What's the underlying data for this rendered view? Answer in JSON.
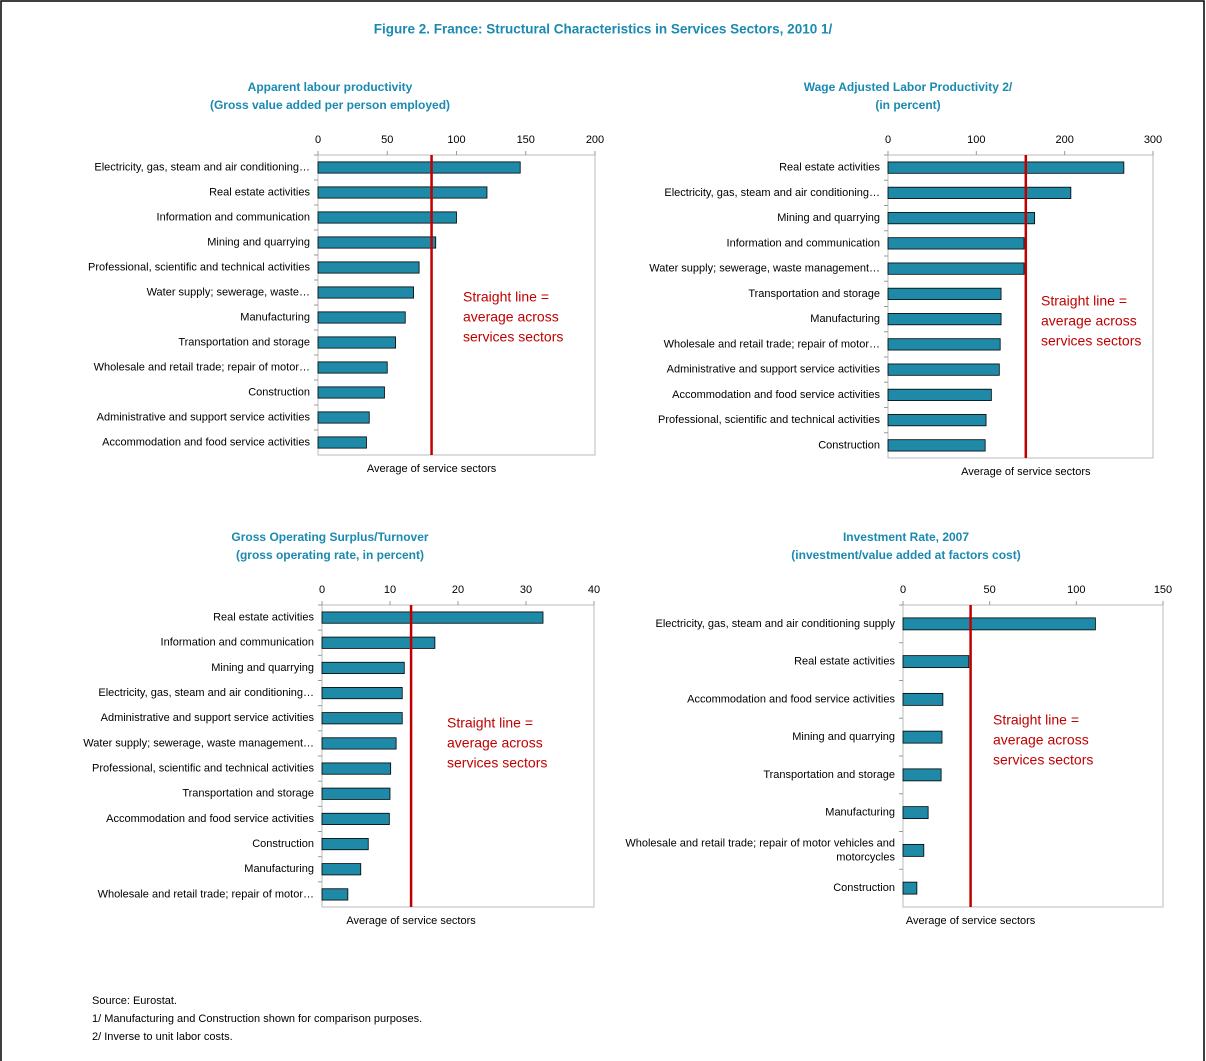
{
  "title": "Figure 2. France: Structural Characteristics in Services Sectors, 2010 1/",
  "notes": [
    "Source: Eurostat.",
    "1/ Manufacturing  and  Construction  shown  for comparison purposes.",
    "2/ Inverse to unit labor costs."
  ],
  "chart_data": [
    {
      "type": "bar",
      "orientation": "horizontal",
      "title": "Apparent labour productivity",
      "subtitle": "(Gross value added per person employed)",
      "categories": [
        "Electricity, gas, steam and air conditioning…",
        "Real estate activities",
        "Information and communication",
        "Mining and quarrying",
        "Professional, scientific and technical activities",
        "Water supply; sewerage, waste…",
        "Manufacturing",
        "Transportation and storage",
        "Wholesale and retail trade; repair of motor…",
        "Construction",
        "Administrative and support service activities",
        "Accommodation and food service activities"
      ],
      "values": [
        146,
        122,
        100,
        85,
        73,
        69,
        63,
        56,
        50,
        48,
        37,
        35
      ],
      "color": "#1f8aa8",
      "xlim": [
        0,
        200
      ],
      "xticks": [
        0,
        50,
        100,
        150,
        200
      ],
      "average": 82,
      "average_color": "#c00000",
      "average_label": "Average of service sectors",
      "annotation": [
        "Straight line  =",
        "average across",
        "services sectors"
      ]
    },
    {
      "type": "bar",
      "orientation": "horizontal",
      "title": "Wage Adjusted Labor Productivity 2/",
      "subtitle": "(in percent)",
      "categories": [
        "Real estate activities",
        "Electricity, gas, steam and air conditioning…",
        "Mining and quarrying",
        "Information and communication",
        "Water supply; sewerage, waste management…",
        "Transportation and storage",
        "Manufacturing",
        "Wholesale and retail trade; repair of motor…",
        "Administrative and support service activities",
        "Accommodation and food service activities",
        "Professional, scientific and technical activities",
        "Construction"
      ],
      "values": [
        267,
        207,
        166,
        154,
        154,
        128,
        128,
        127,
        126,
        117,
        111,
        110
      ],
      "color": "#1f8aa8",
      "xlim": [
        0,
        300
      ],
      "xticks": [
        0,
        100,
        200,
        300
      ],
      "average": 156,
      "average_color": "#c00000",
      "average_label": "Average of service sectors",
      "annotation": [
        "Straight line =",
        "average across",
        "services sectors"
      ]
    },
    {
      "type": "bar",
      "orientation": "horizontal",
      "title": "Gross Operating Surplus/Turnover",
      "subtitle": "(gross operating rate, in percent)",
      "categories": [
        "Real estate activities",
        "Information and communication",
        "Mining and quarrying",
        "Electricity, gas, steam and air conditioning…",
        "Administrative and support service activities",
        "Water supply; sewerage, waste management…",
        "Professional, scientific and technical activities",
        "Transportation and storage",
        "Accommodation and food service activities",
        "Construction",
        "Manufacturing",
        "Wholesale and retail trade; repair of motor…"
      ],
      "values": [
        32.5,
        16.6,
        12.1,
        11.8,
        11.8,
        10.9,
        10.1,
        10.0,
        9.9,
        6.8,
        5.7,
        3.8
      ],
      "color": "#1f8aa8",
      "xlim": [
        0,
        40
      ],
      "xticks": [
        0,
        10,
        20,
        30,
        40
      ],
      "average": 13.1,
      "average_color": "#c00000",
      "average_label": "Average of service sectors",
      "annotation": [
        "Straight line =",
        "average across",
        "services sectors"
      ]
    },
    {
      "type": "bar",
      "orientation": "horizontal",
      "title": "Investment Rate, 2007",
      "subtitle": "(investment/value added at factors cost)",
      "categories": [
        "Electricity, gas, steam and air conditioning supply",
        "Real estate activities",
        "Accommodation and food service activities",
        "Mining and quarrying",
        "Transportation and storage",
        "Manufacturing",
        "Wholesale and retail trade; repair of motor vehicles and motorcycles",
        "Construction"
      ],
      "values": [
        111,
        38,
        23,
        22.5,
        22,
        14.5,
        12,
        8
      ],
      "color": "#1f8aa8",
      "xlim": [
        0,
        150
      ],
      "xticks": [
        0,
        50,
        100,
        150
      ],
      "average": 39,
      "average_color": "#c00000",
      "average_label": "Average of service sectors",
      "annotation": [
        "Straight line =",
        "average across",
        "services sectors"
      ]
    }
  ]
}
